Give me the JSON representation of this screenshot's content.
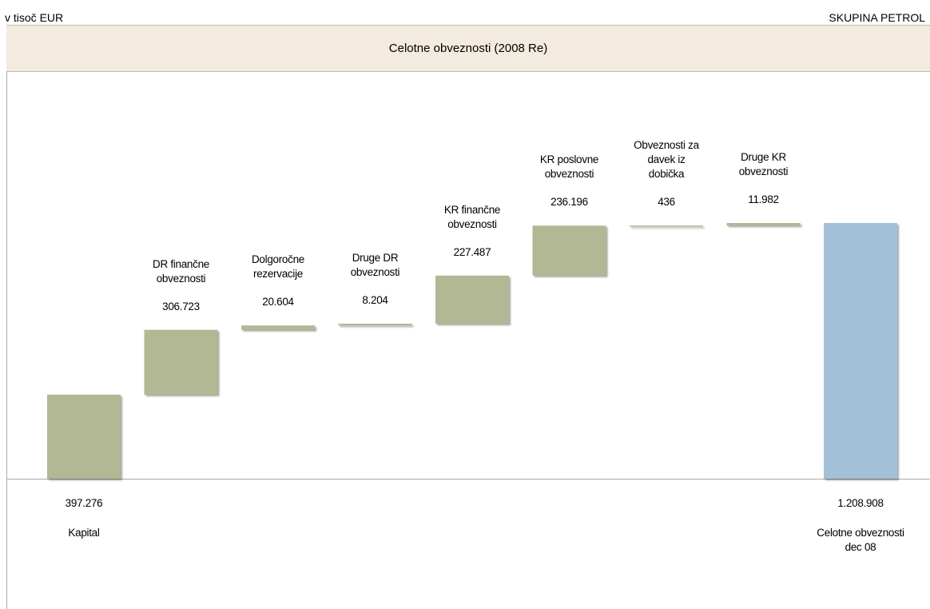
{
  "header": {
    "left": "v tisoč EUR",
    "right": "SKUPINA PETROL"
  },
  "chart_data": {
    "type": "waterfall",
    "title": "Celotne obveznosti  (2008 Re)",
    "categories": [
      "Kapital",
      "DR finančne\nobveznosti",
      "Dolgoročne\nrezervacije",
      "Druge DR\nobveznosti",
      "KR finančne\nobveznosti",
      "KR poslovne\nobveznosti",
      "Obveznosti za\ndavek iz\ndobička",
      "Druge KR\nobveznosti",
      "Celotne obveznosti\ndec 08"
    ],
    "values": [
      397276,
      306723,
      20604,
      8204,
      227487,
      236196,
      436,
      11982,
      1208908
    ],
    "value_labels": [
      "397.276",
      "306.723",
      "20.604",
      "8.204",
      "227.487",
      "236.196",
      "436",
      "11.982",
      "1.208.908"
    ],
    "color": "#b3b894",
    "total_color": "#a4c0d8"
  }
}
